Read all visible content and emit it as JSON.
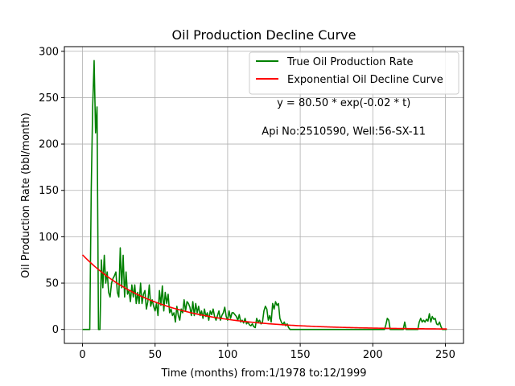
{
  "chart_data": {
    "type": "line",
    "title": "Oil Production Decline Curve",
    "xlabel": "Time (months) from:1/1978 to:12/1999",
    "ylabel": "Oil Production Rate (bbl/month)",
    "xlim": [
      -12.5,
      262.5
    ],
    "ylim": [
      -15,
      305
    ],
    "xticks": [
      0,
      50,
      100,
      150,
      200,
      250
    ],
    "yticks": [
      0,
      50,
      100,
      150,
      200,
      250,
      300
    ],
    "grid": true,
    "legend_position": "top-right",
    "annotations": [
      {
        "text": "y = 80.50 * exp(-0.02 * t)",
        "x": 180,
        "y": 241
      },
      {
        "text": "Api No:2510590, Well:56-SX-11",
        "x": 180,
        "y": 210
      }
    ],
    "series": [
      {
        "name": "True Oil Production Rate",
        "color": "#008000",
        "points": [
          [
            0,
            0
          ],
          [
            1,
            0
          ],
          [
            2,
            0
          ],
          [
            3,
            0
          ],
          [
            4,
            0
          ],
          [
            5,
            0
          ],
          [
            6,
            150
          ],
          [
            7,
            240
          ],
          [
            8,
            290
          ],
          [
            9,
            212
          ],
          [
            10,
            240
          ],
          [
            11,
            0
          ],
          [
            12,
            0
          ],
          [
            13,
            75
          ],
          [
            14,
            45
          ],
          [
            15,
            80
          ],
          [
            16,
            50
          ],
          [
            17,
            62
          ],
          [
            18,
            40
          ],
          [
            19,
            35
          ],
          [
            20,
            50
          ],
          [
            21,
            55
          ],
          [
            22,
            58
          ],
          [
            23,
            62
          ],
          [
            24,
            40
          ],
          [
            25,
            35
          ],
          [
            26,
            88
          ],
          [
            27,
            45
          ],
          [
            28,
            80
          ],
          [
            29,
            35
          ],
          [
            30,
            62
          ],
          [
            31,
            38
          ],
          [
            32,
            42
          ],
          [
            33,
            30
          ],
          [
            34,
            48
          ],
          [
            35,
            35
          ],
          [
            36,
            48
          ],
          [
            37,
            28
          ],
          [
            38,
            40
          ],
          [
            39,
            28
          ],
          [
            40,
            50
          ],
          [
            41,
            28
          ],
          [
            42,
            38
          ],
          [
            43,
            42
          ],
          [
            44,
            22
          ],
          [
            45,
            30
          ],
          [
            46,
            48
          ],
          [
            47,
            25
          ],
          [
            48,
            32
          ],
          [
            49,
            25
          ],
          [
            50,
            20
          ],
          [
            51,
            28
          ],
          [
            52,
            15
          ],
          [
            53,
            42
          ],
          [
            54,
            26
          ],
          [
            55,
            47
          ],
          [
            56,
            20
          ],
          [
            57,
            40
          ],
          [
            58,
            28
          ],
          [
            59,
            38
          ],
          [
            60,
            18
          ],
          [
            61,
            22
          ],
          [
            62,
            15
          ],
          [
            63,
            18
          ],
          [
            64,
            8
          ],
          [
            65,
            25
          ],
          [
            66,
            15
          ],
          [
            67,
            10
          ],
          [
            68,
            22
          ],
          [
            69,
            18
          ],
          [
            70,
            32
          ],
          [
            71,
            20
          ],
          [
            72,
            30
          ],
          [
            73,
            28
          ],
          [
            74,
            24
          ],
          [
            75,
            15
          ],
          [
            76,
            30
          ],
          [
            77,
            15
          ],
          [
            78,
            28
          ],
          [
            79,
            18
          ],
          [
            80,
            25
          ],
          [
            81,
            15
          ],
          [
            82,
            20
          ],
          [
            83,
            12
          ],
          [
            84,
            22
          ],
          [
            85,
            14
          ],
          [
            86,
            18
          ],
          [
            87,
            10
          ],
          [
            88,
            20
          ],
          [
            89,
            16
          ],
          [
            90,
            22
          ],
          [
            91,
            14
          ],
          [
            92,
            10
          ],
          [
            93,
            15
          ],
          [
            94,
            20
          ],
          [
            95,
            10
          ],
          [
            96,
            15
          ],
          [
            97,
            18
          ],
          [
            98,
            24
          ],
          [
            99,
            14
          ],
          [
            100,
            10
          ],
          [
            101,
            20
          ],
          [
            102,
            12
          ],
          [
            103,
            18
          ],
          [
            104,
            18
          ],
          [
            105,
            16
          ],
          [
            106,
            14
          ],
          [
            107,
            10
          ],
          [
            108,
            16
          ],
          [
            109,
            8
          ],
          [
            110,
            10
          ],
          [
            111,
            7
          ],
          [
            112,
            12
          ],
          [
            113,
            6
          ],
          [
            114,
            8
          ],
          [
            115,
            5
          ],
          [
            116,
            4
          ],
          [
            117,
            6
          ],
          [
            118,
            3
          ],
          [
            119,
            2
          ],
          [
            120,
            12
          ],
          [
            121,
            8
          ],
          [
            122,
            10
          ],
          [
            123,
            6
          ],
          [
            124,
            8
          ],
          [
            125,
            20
          ],
          [
            126,
            25
          ],
          [
            127,
            22
          ],
          [
            128,
            10
          ],
          [
            129,
            15
          ],
          [
            130,
            8
          ],
          [
            131,
            28
          ],
          [
            132,
            22
          ],
          [
            133,
            30
          ],
          [
            134,
            26
          ],
          [
            135,
            28
          ],
          [
            136,
            12
          ],
          [
            137,
            8
          ],
          [
            138,
            5
          ],
          [
            139,
            8
          ],
          [
            140,
            4
          ],
          [
            141,
            6
          ],
          [
            142,
            2
          ],
          [
            143,
            0
          ],
          [
            144,
            0
          ],
          [
            150,
            0
          ],
          [
            160,
            0
          ],
          [
            170,
            0
          ],
          [
            180,
            0
          ],
          [
            190,
            0
          ],
          [
            200,
            0
          ],
          [
            208,
            0
          ],
          [
            209,
            5
          ],
          [
            210,
            12
          ],
          [
            211,
            10
          ],
          [
            212,
            0
          ],
          [
            213,
            0
          ],
          [
            220,
            0
          ],
          [
            221,
            0
          ],
          [
            222,
            8
          ],
          [
            223,
            0
          ],
          [
            224,
            0
          ],
          [
            230,
            0
          ],
          [
            231,
            0
          ],
          [
            232,
            8
          ],
          [
            233,
            12
          ],
          [
            234,
            8
          ],
          [
            235,
            10
          ],
          [
            236,
            8
          ],
          [
            237,
            11
          ],
          [
            238,
            9
          ],
          [
            239,
            17
          ],
          [
            240,
            8
          ],
          [
            241,
            14
          ],
          [
            242,
            11
          ],
          [
            243,
            12
          ],
          [
            244,
            6
          ],
          [
            245,
            5
          ],
          [
            246,
            8
          ],
          [
            247,
            3
          ],
          [
            248,
            0
          ],
          [
            249,
            0
          ],
          [
            250,
            0
          ],
          [
            251,
            0
          ]
        ]
      },
      {
        "name": "Exponential Oil Decline Curve",
        "color": "#ff0000",
        "a": 80.5,
        "b": 0.02,
        "t_min": 0,
        "t_max": 251
      }
    ]
  }
}
